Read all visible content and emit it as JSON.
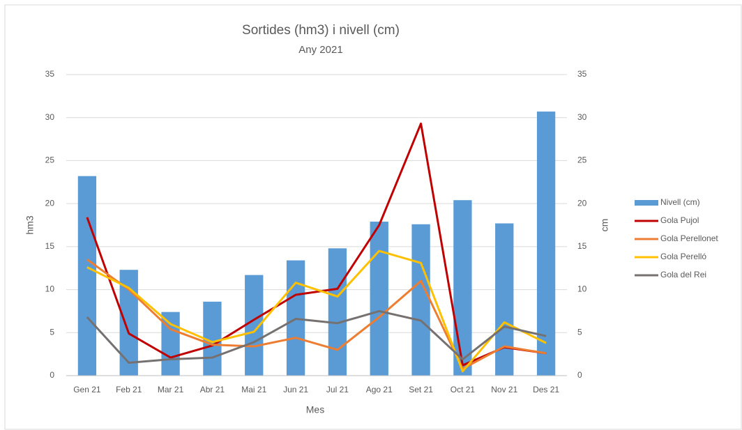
{
  "chart_data": {
    "type": "combo",
    "title": "Sortides (hm3) i nivell (cm)",
    "subtitle": "Any 2021",
    "x_label": "Mes",
    "y_label": "hm3",
    "y2_label": "cm",
    "categories": [
      "Gen 21",
      "Feb 21",
      "Mar 21",
      "Abr 21",
      "Mai 21",
      "Jun 21",
      "Jul 21",
      "Ago 21",
      "Set 21",
      "Oct 21",
      "Nov 21",
      "Des 21"
    ],
    "series": [
      {
        "name": "Nivell (cm)",
        "type": "bar",
        "axis": "y2",
        "color": "#5b9bd5",
        "values": [
          23.2,
          12.3,
          7.4,
          8.6,
          11.7,
          13.4,
          14.8,
          17.9,
          17.6,
          20.4,
          17.7,
          30.7
        ]
      },
      {
        "name": "Gola Pujol",
        "type": "line",
        "color": "#c00000",
        "values": [
          18.4,
          4.9,
          2.1,
          3.5,
          6.5,
          9.4,
          10.1,
          17.5,
          29.3,
          1.2,
          3.3,
          2.6
        ]
      },
      {
        "name": "Gola Perellonet",
        "type": "line",
        "color": "#ed7d31",
        "values": [
          13.5,
          10.0,
          5.4,
          3.6,
          3.4,
          4.4,
          3.0,
          6.8,
          11.0,
          0.8,
          3.4,
          2.6
        ]
      },
      {
        "name": "Gola Perelló",
        "type": "line",
        "color": "#ffc000",
        "values": [
          12.6,
          10.2,
          6.0,
          3.9,
          5.1,
          10.8,
          9.2,
          14.5,
          13.1,
          0.5,
          6.2,
          3.8
        ]
      },
      {
        "name": "Gola del Rei",
        "type": "line",
        "color": "#767171",
        "values": [
          6.8,
          1.5,
          1.9,
          2.1,
          3.9,
          6.6,
          6.1,
          7.5,
          6.4,
          1.9,
          5.7,
          4.6
        ]
      }
    ],
    "ylim": [
      0,
      35
    ],
    "yticks": [
      0,
      5,
      10,
      15,
      20,
      25,
      30,
      35
    ],
    "y2lim": [
      0,
      35
    ],
    "y2ticks": [
      0,
      5,
      10,
      15,
      20,
      25,
      30,
      35
    ],
    "grid": true,
    "legend": "right"
  }
}
